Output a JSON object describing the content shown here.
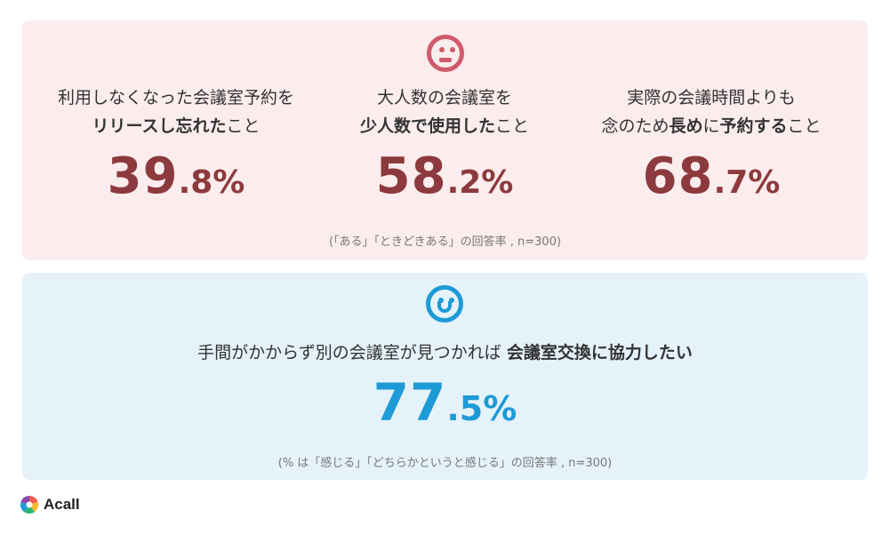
{
  "top_section": {
    "face_icon": "neutral-face-icon",
    "items": [
      {
        "line1": [
          {
            "text": "利用しなくなった会議室予約を",
            "bold": false
          }
        ],
        "line2": [
          {
            "text": "リリースし忘れた",
            "bold": true
          },
          {
            "text": "こと",
            "bold": false
          }
        ],
        "value_int": "39",
        "value_dec": ".8%"
      },
      {
        "line1": [
          {
            "text": "大人数の会議室を",
            "bold": false
          }
        ],
        "line2": [
          {
            "text": "少人数で使用した",
            "bold": true
          },
          {
            "text": "こと",
            "bold": false
          }
        ],
        "value_int": "58",
        "value_dec": ".2%"
      },
      {
        "line1": [
          {
            "text": "実際の会議時間よりも",
            "bold": false
          }
        ],
        "line2": [
          {
            "text": "念のため",
            "bold": false
          },
          {
            "text": "長め",
            "bold": true
          },
          {
            "text": "に",
            "bold": false
          },
          {
            "text": "予約する",
            "bold": true
          },
          {
            "text": "こと",
            "bold": false
          }
        ],
        "value_int": "68",
        "value_dec": ".7%"
      }
    ],
    "note": "(「ある」「ときどきある」の回答率 , n=300)"
  },
  "bottom_section": {
    "face_icon": "smiley-face-icon",
    "question_normal": "手間がかからず別の会議室が見つかれば ",
    "question_bold": "会議室交換に協力したい",
    "value_int": "77",
    "value_dec": ".5%",
    "note": "(% は「感じる」「どちらかというと感じる」の回答率 , n=300)"
  },
  "logo": {
    "text": "Acall",
    "colors": [
      "#f15a4f",
      "#f7b731",
      "#2bb673",
      "#1e9ad6",
      "#8e44ad"
    ]
  },
  "colors": {
    "pink_bg": "#fbeced",
    "blue_bg": "#e5f2fa",
    "stat_red": "#8c3a3d",
    "stat_blue": "#1e9ad6",
    "face_red": "#cf5b6c"
  }
}
